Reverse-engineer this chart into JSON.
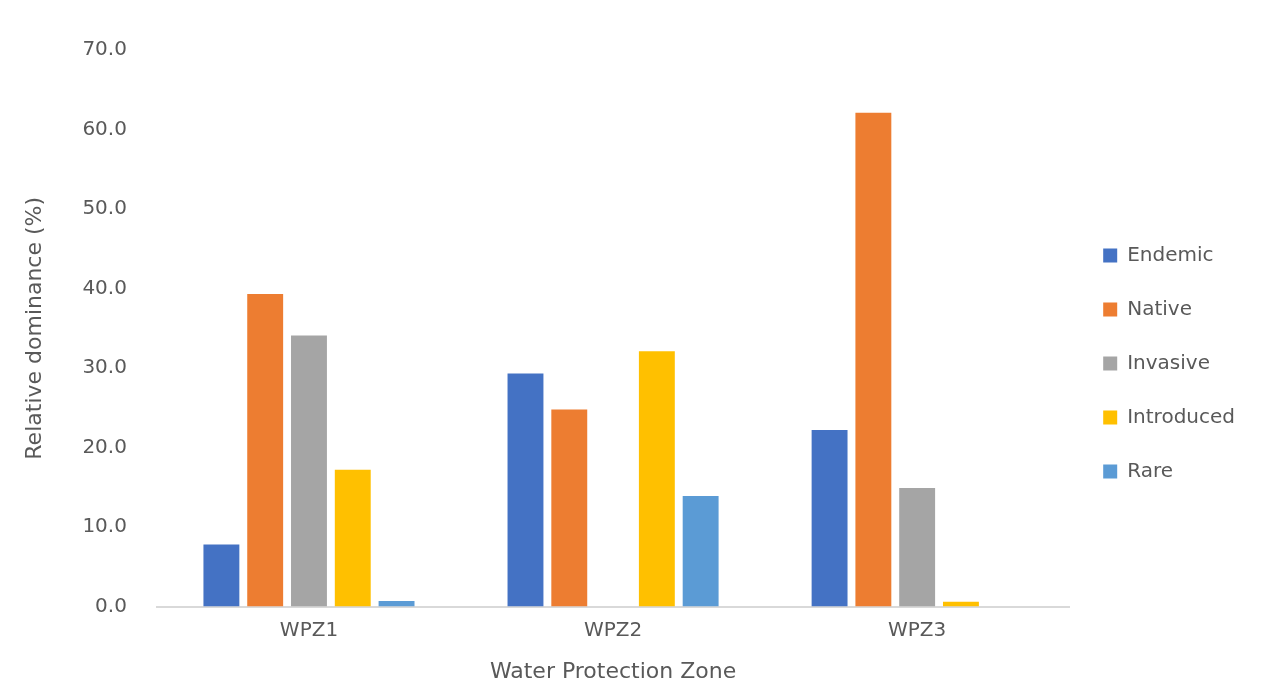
{
  "chart_data": {
    "type": "bar",
    "xlabel": "Water Protection Zone",
    "ylabel": "Relative dominance (%)",
    "categories": [
      "WPZ1",
      "WPZ2",
      "WPZ3"
    ],
    "series": [
      {
        "name": "Endemic",
        "color": "#4472c4",
        "values": [
          7.8,
          29.3,
          22.2
        ]
      },
      {
        "name": "Native",
        "color": "#ed7d31",
        "values": [
          39.3,
          24.8,
          62.1
        ]
      },
      {
        "name": "Invasive",
        "color": "#a5a5a5",
        "values": [
          34.1,
          0,
          14.9
        ]
      },
      {
        "name": "Introduced",
        "color": "#ffc000",
        "values": [
          17.2,
          32.1,
          0.6
        ]
      },
      {
        "name": "Rare",
        "color": "#5b9bd5",
        "values": [
          0.7,
          13.9,
          0
        ]
      }
    ],
    "ylim": [
      0,
      70
    ],
    "yticks": [
      {
        "value": 0,
        "label": "0.0"
      },
      {
        "value": 10,
        "label": "10.0"
      },
      {
        "value": 20,
        "label": "20.0"
      },
      {
        "value": 30,
        "label": "30.0"
      },
      {
        "value": 40,
        "label": "40.0"
      },
      {
        "value": 50,
        "label": "50.0"
      },
      {
        "value": 60,
        "label": "60.0"
      },
      {
        "value": 70,
        "label": "70.0"
      }
    ],
    "grid": false,
    "legend": "right"
  }
}
